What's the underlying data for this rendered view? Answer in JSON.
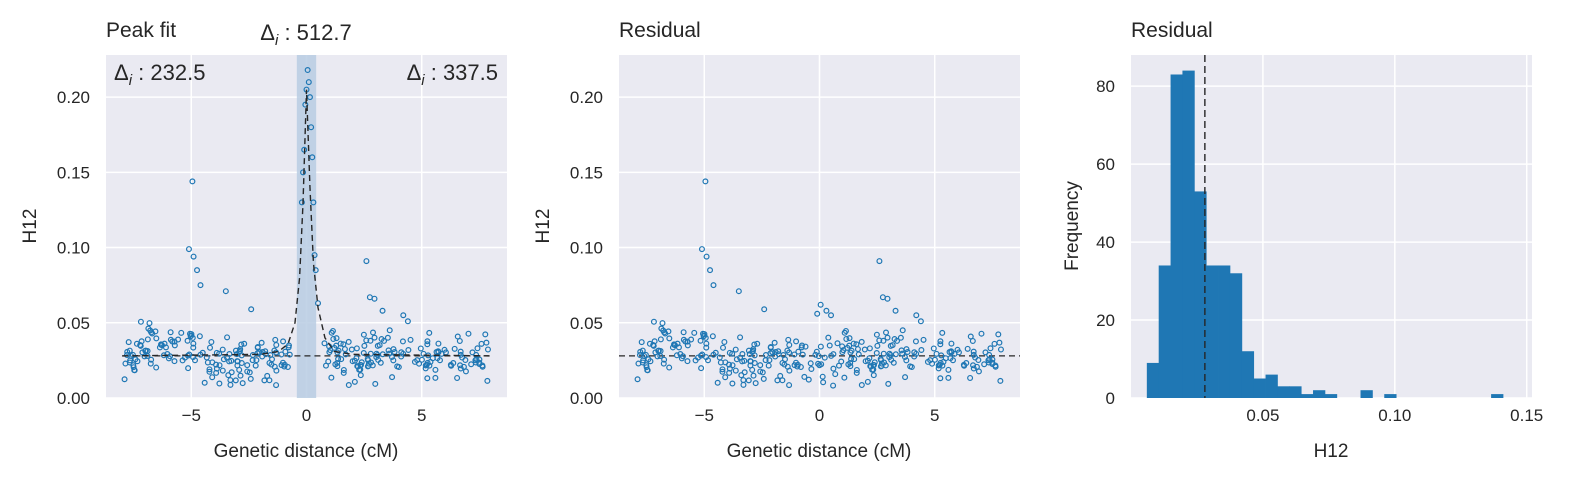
{
  "chart_data": [
    {
      "type": "scatter",
      "title": "Peak fit",
      "xlabel": "Genetic distance (cM)",
      "ylabel": "H12",
      "xlim": [
        -8.7,
        8.7
      ],
      "ylim": [
        0.0,
        0.228
      ],
      "xticks": [
        -5,
        0,
        5
      ],
      "xtick_labels": [
        "−5",
        "0",
        "5"
      ],
      "yticks": [
        0.0,
        0.05,
        0.1,
        0.15,
        0.2
      ],
      "ytick_labels": [
        "0.00",
        "0.05",
        "0.10",
        "0.15",
        "0.20"
      ],
      "grid": true,
      "baseline": 0.028,
      "shaded_band": [
        -0.42,
        0.42
      ],
      "annotations": {
        "left_sym": "Δ",
        "left_sub": "i",
        "left_val": " : 232.5",
        "top_sym": "Δ",
        "top_sub": "i",
        "top_val": " : 512.7",
        "right_sym": "Δ",
        "right_sub": "i",
        "right_val": " : 337.5"
      },
      "fit_curve": {
        "x": [
          -8.0,
          -2.0,
          -1.2,
          -0.8,
          -0.5,
          -0.3,
          -0.15,
          0.0,
          0.15,
          0.3,
          0.5,
          0.8,
          1.2,
          2.0,
          8.0
        ],
        "y": [
          0.028,
          0.029,
          0.031,
          0.036,
          0.05,
          0.08,
          0.13,
          0.205,
          0.14,
          0.09,
          0.06,
          0.04,
          0.031,
          0.029,
          0.028
        ]
      },
      "outliers": {
        "x": [
          -5.1,
          -4.95,
          -4.9,
          -4.75,
          -4.6,
          -3.5,
          -2.4,
          -0.2,
          -0.15,
          -0.1,
          -0.05,
          0.0,
          0.05,
          0.1,
          0.15,
          0.2,
          0.25,
          0.3,
          0.35,
          0.4,
          0.5,
          2.6,
          2.75,
          2.95,
          3.3,
          4.2,
          4.4
        ],
        "y": [
          0.099,
          0.144,
          0.094,
          0.085,
          0.075,
          0.071,
          0.059,
          0.13,
          0.15,
          0.165,
          0.195,
          0.205,
          0.218,
          0.21,
          0.2,
          0.18,
          0.16,
          0.13,
          0.095,
          0.085,
          0.063,
          0.091,
          0.067,
          0.066,
          0.058,
          0.055,
          0.051
        ]
      }
    },
    {
      "type": "scatter",
      "title": "Residual",
      "xlabel": "Genetic distance (cM)",
      "ylabel": "H12",
      "xlim": [
        -8.7,
        8.7
      ],
      "ylim": [
        0.0,
        0.228
      ],
      "xticks": [
        -5,
        0,
        5
      ],
      "xtick_labels": [
        "−5",
        "0",
        "5"
      ],
      "yticks": [
        0.0,
        0.05,
        0.1,
        0.15,
        0.2
      ],
      "ytick_labels": [
        "0.00",
        "0.05",
        "0.10",
        "0.15",
        "0.20"
      ],
      "grid": true,
      "baseline": 0.028,
      "outliers": {
        "x": [
          -5.1,
          -4.95,
          -4.9,
          -4.75,
          -4.6,
          -3.5,
          -2.4,
          -0.1,
          0.05,
          0.3,
          0.5,
          2.6,
          2.75,
          2.95,
          3.3,
          4.2,
          4.4
        ],
        "y": [
          0.099,
          0.144,
          0.094,
          0.085,
          0.075,
          0.071,
          0.059,
          0.056,
          0.062,
          0.058,
          0.055,
          0.091,
          0.067,
          0.066,
          0.058,
          0.055,
          0.051
        ]
      }
    },
    {
      "type": "bar",
      "title": "Residual",
      "xlabel": "H12",
      "ylabel": "Frequency",
      "xlim": [
        0.0,
        0.152
      ],
      "ylim": [
        0,
        88
      ],
      "xticks": [
        0.05,
        0.1,
        0.15
      ],
      "xtick_labels": [
        "0.05",
        "0.10",
        "0.15"
      ],
      "yticks": [
        0,
        20,
        40,
        60,
        80
      ],
      "ytick_labels": [
        "0",
        "20",
        "40",
        "60",
        "80"
      ],
      "grid": true,
      "vline": 0.028,
      "bin_start": 0.006,
      "bin_width": 0.0045,
      "values": [
        9,
        34,
        83,
        84,
        53,
        34,
        34,
        32,
        12,
        5,
        6,
        3,
        3,
        1,
        2,
        1,
        0,
        0,
        2,
        0,
        1,
        0,
        0,
        0,
        0,
        0,
        0,
        0,
        0,
        1
      ]
    }
  ],
  "colors": {
    "axes_bg": "#eaeaf2",
    "grid": "#ffffff",
    "marker": "#1f77b4",
    "bar": "#1f77b4",
    "band": "#b9cde3",
    "line": "#262626"
  }
}
